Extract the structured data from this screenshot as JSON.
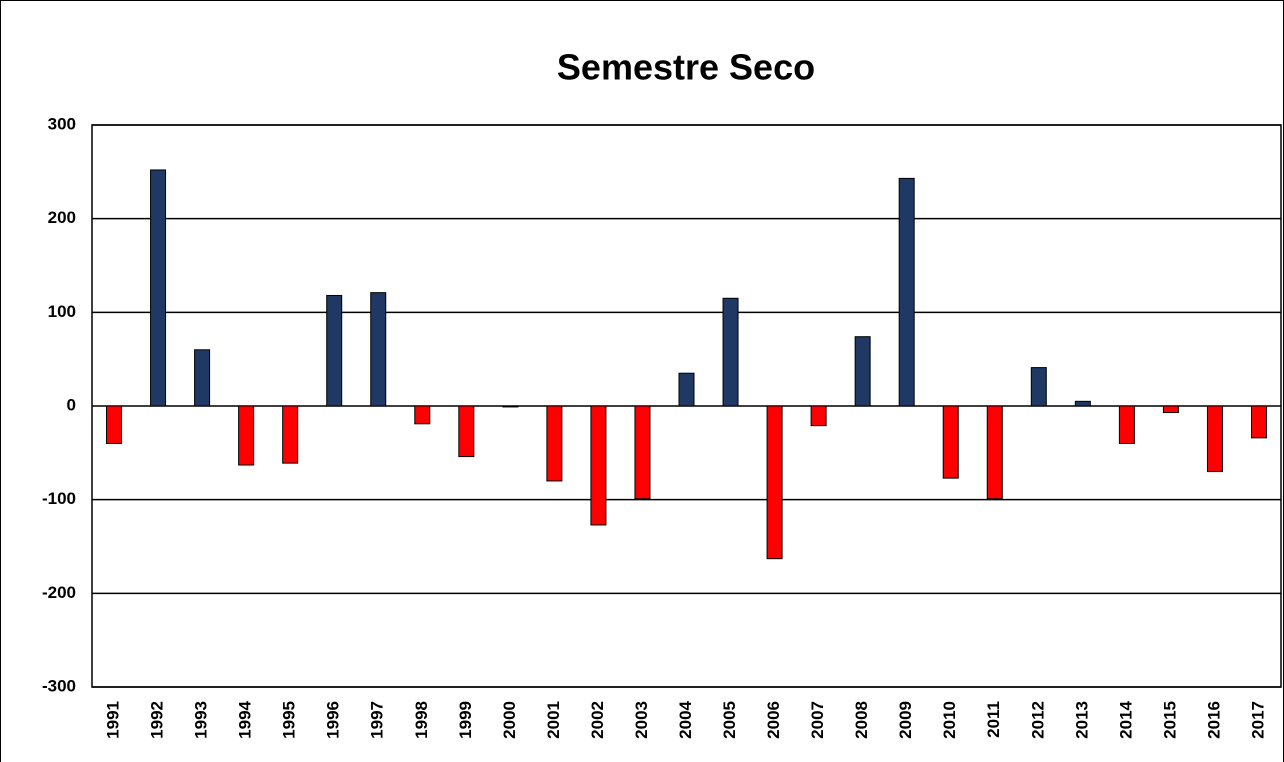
{
  "chart_data": {
    "type": "bar",
    "title": "Semestre Seco",
    "categories": [
      "1991",
      "1992",
      "1993",
      "1994",
      "1995",
      "1996",
      "1997",
      "1998",
      "1999",
      "2000",
      "2001",
      "2002",
      "2003",
      "2004",
      "2005",
      "2006",
      "2007",
      "2008",
      "2009",
      "2010",
      "2011",
      "2012",
      "2013",
      "2014",
      "2015",
      "2016",
      "2017"
    ],
    "values": [
      -40,
      252,
      60,
      -63,
      -61,
      118,
      121,
      -19,
      -54,
      -1,
      -80,
      -127,
      -99,
      35,
      115,
      -163,
      -21,
      74,
      243,
      -77,
      -99,
      41,
      5,
      -40,
      -7,
      -70,
      -34
    ],
    "positive_color": "#1f3864",
    "negative_color": "#ff0000",
    "ylim": [
      -300,
      300
    ],
    "yticks": [
      -300,
      -200,
      -100,
      0,
      100,
      200,
      300
    ],
    "grid": true
  }
}
